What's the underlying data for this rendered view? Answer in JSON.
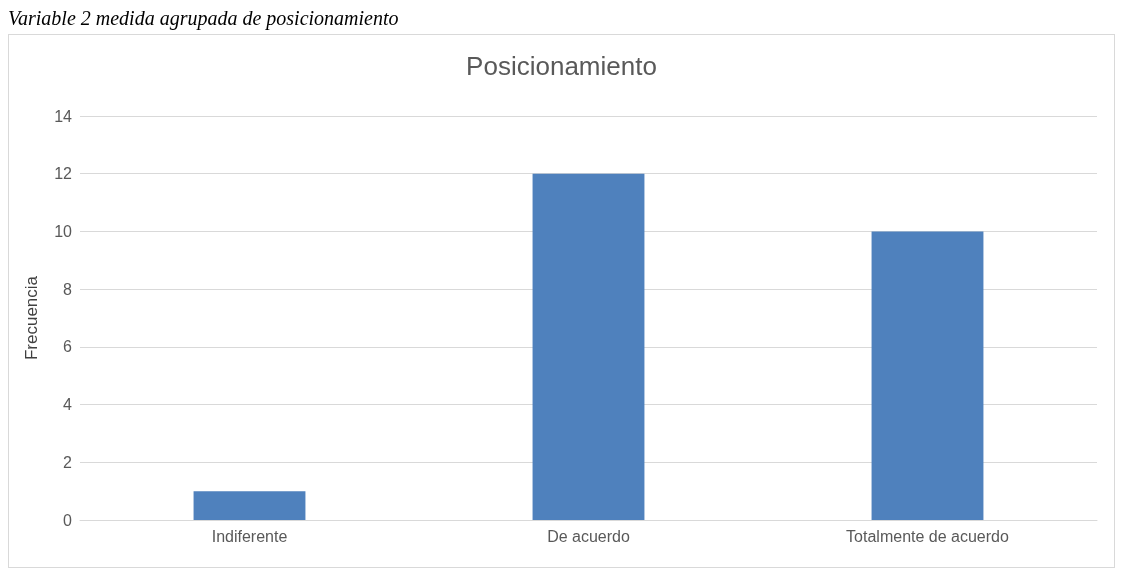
{
  "chart_data": {
    "type": "bar",
    "title": "Posicionamiento",
    "ylabel": "Frecuencia",
    "annotations": [
      "Variable 2 medida agrupada de posicionamiento"
    ],
    "categories": [
      "Indiferente",
      "De acuerdo",
      "Totalmente de acuerdo"
    ],
    "values": [
      1,
      12,
      10
    ],
    "color": "#4f81bd",
    "ylim": [
      0,
      14
    ],
    "yticks": [
      0,
      2,
      4,
      6,
      8,
      10,
      12,
      14
    ],
    "grid": "y"
  }
}
